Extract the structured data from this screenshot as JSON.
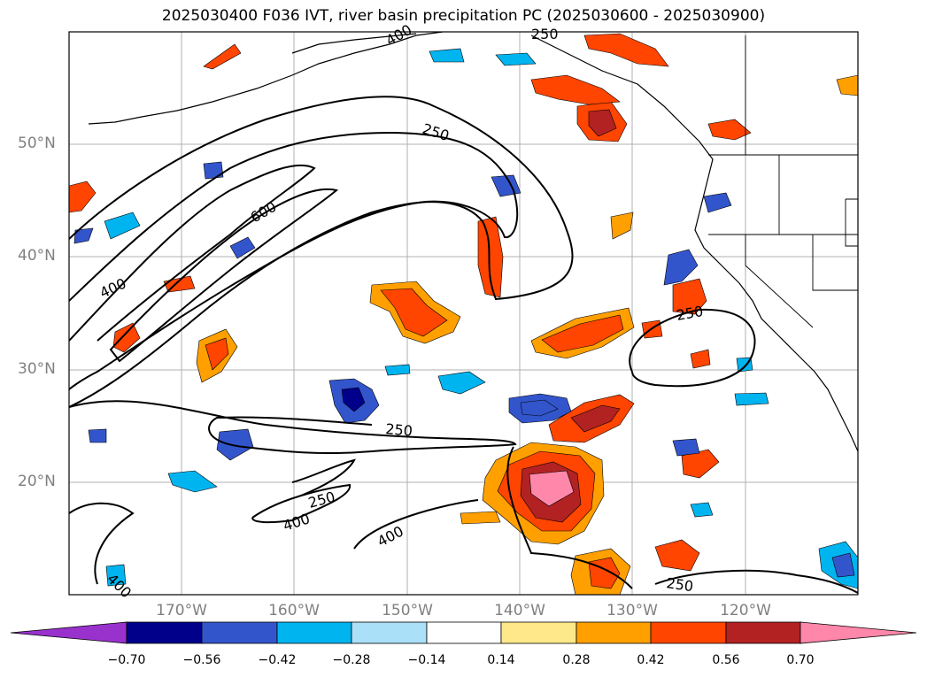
{
  "title": "2025030400 F036 IVT, river basin precipitation PC (2025030600 - 2025030900)",
  "axes": {
    "lat_labels": [
      "50°N",
      "40°N",
      "30°N",
      "20°N"
    ],
    "lon_labels": [
      "170°W",
      "160°W",
      "150°W",
      "140°W",
      "130°W",
      "120°W"
    ]
  },
  "contour_labels": [
    "250",
    "600",
    "400",
    "250",
    "250",
    "250",
    "400",
    "400",
    "250",
    "400",
    "400",
    "250"
  ],
  "colorbar": {
    "tick_labels": [
      "−0.70",
      "−0.56",
      "−0.42",
      "−0.28",
      "−0.14",
      "0.14",
      "0.28",
      "0.42",
      "0.56",
      "0.70"
    ],
    "colors": [
      "#9932cc",
      "#00008b",
      "#3355cc",
      "#00b4f0",
      "#aae0f8",
      "#ffffff",
      "#ffe88a",
      "#ffa000",
      "#ff4500",
      "#b22222",
      "#ff88aa"
    ]
  }
}
